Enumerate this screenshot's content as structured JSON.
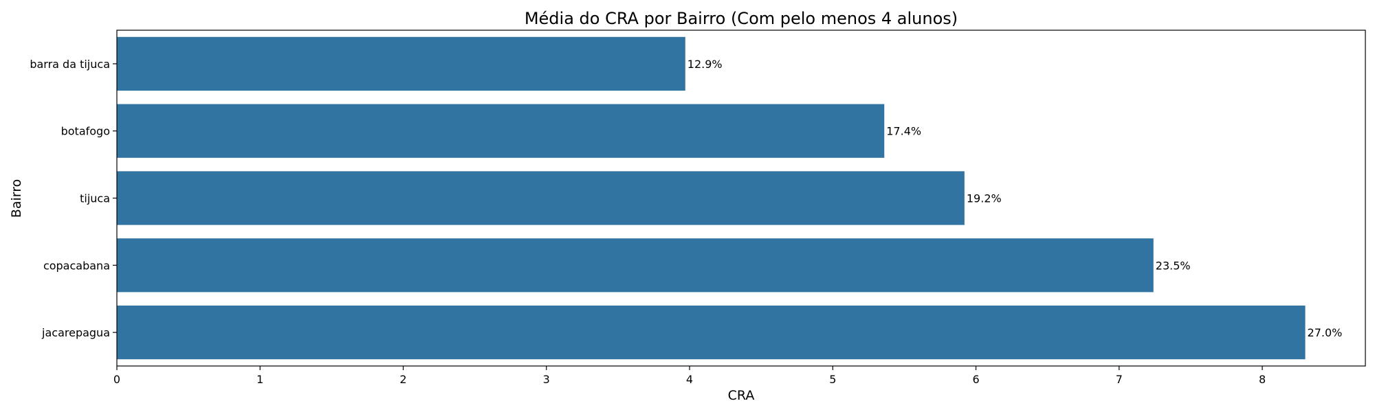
{
  "chart_data": {
    "type": "bar",
    "orientation": "horizontal",
    "title": "Média do CRA por Bairro (Com pelo menos 4 alunos)",
    "xlabel": "CRA",
    "ylabel": "Bairro",
    "categories": [
      "barra da tijuca",
      "botafogo",
      "tijuca",
      "copacabana",
      "jacarepagua"
    ],
    "values": [
      3.97,
      5.36,
      5.92,
      7.24,
      8.3
    ],
    "data_labels": [
      "12.9%",
      "17.4%",
      "19.2%",
      "23.5%",
      "27.0%"
    ],
    "x_ticks": [
      "0",
      "1",
      "2",
      "3",
      "4",
      "5",
      "6",
      "7",
      "8"
    ],
    "xlim": [
      0,
      8.72
    ],
    "grid": false,
    "bar_color": "#3274a1"
  }
}
